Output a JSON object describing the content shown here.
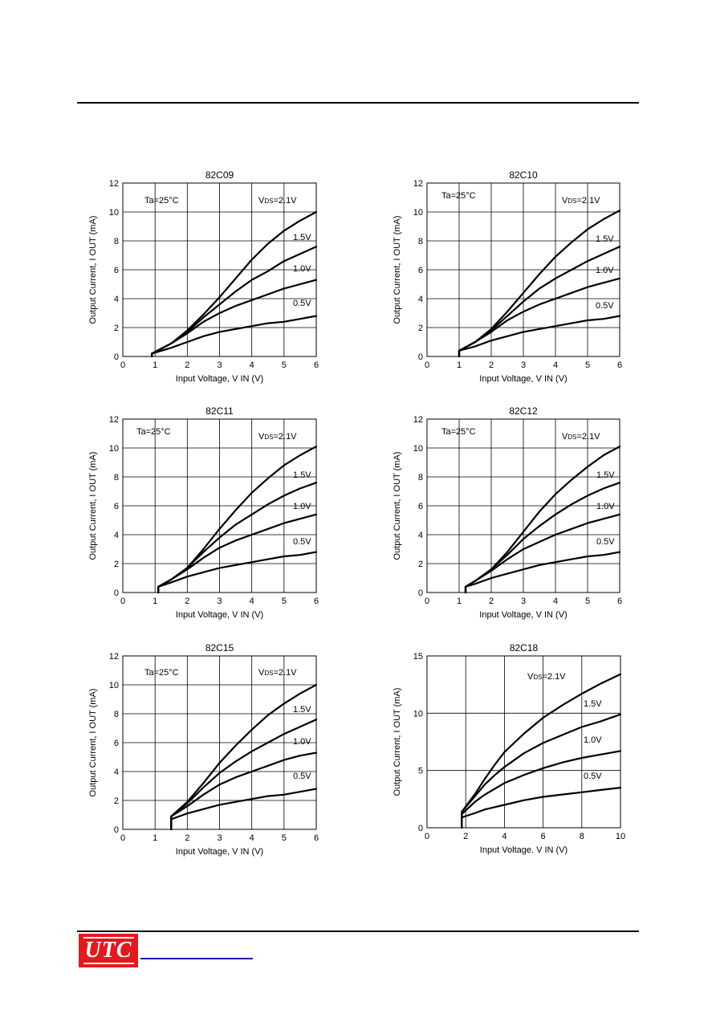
{
  "page": {
    "footer_logo_text": "UTC",
    "colors": {
      "rule": "#000000",
      "logo_bg": "#e3191e",
      "link": "#1a1aa6"
    }
  },
  "chart_data": [
    {
      "type": "line",
      "title": "82C09",
      "xlabel": "Input Voltage, V IN (V)",
      "ylabel": "Output Current, I OUT (mA)",
      "xlim": [
        0,
        6
      ],
      "ylim": [
        0,
        12
      ],
      "xticks": [
        0,
        1,
        2,
        3,
        4,
        5,
        6
      ],
      "yticks": [
        0,
        2,
        4,
        6,
        8,
        10,
        12
      ],
      "annotations": [
        "Ta=25°C"
      ],
      "grid": true,
      "series": [
        {
          "name": "VDS=2.1V",
          "x": [
            0.9,
            1.5,
            2.0,
            2.5,
            3.0,
            3.5,
            4.0,
            4.5,
            5.0,
            5.5,
            6.0
          ],
          "y": [
            0.2,
            0.9,
            1.8,
            2.9,
            4.1,
            5.4,
            6.7,
            7.8,
            8.7,
            9.4,
            10.0
          ]
        },
        {
          "name": "1.5V",
          "x": [
            0.9,
            1.5,
            2.0,
            2.5,
            3.0,
            3.5,
            4.0,
            4.5,
            5.0,
            5.5,
            6.0
          ],
          "y": [
            0.2,
            0.9,
            1.7,
            2.7,
            3.6,
            4.5,
            5.3,
            5.9,
            6.6,
            7.1,
            7.6
          ]
        },
        {
          "name": "1.0V",
          "x": [
            0.9,
            1.5,
            2.0,
            2.5,
            3.0,
            3.5,
            4.0,
            4.5,
            5.0,
            5.5,
            6.0
          ],
          "y": [
            0.2,
            0.9,
            1.6,
            2.4,
            3.0,
            3.5,
            3.9,
            4.3,
            4.7,
            5.0,
            5.3
          ]
        },
        {
          "name": "0.5V",
          "x": [
            0.9,
            1.5,
            2.0,
            2.5,
            3.0,
            3.5,
            4.0,
            4.5,
            5.0,
            5.5,
            6.0
          ],
          "y": [
            0.2,
            0.6,
            1.0,
            1.4,
            1.7,
            1.9,
            2.1,
            2.3,
            2.4,
            2.6,
            2.8
          ]
        }
      ]
    },
    {
      "type": "line",
      "title": "82C10",
      "xlabel": "Input Voltage, V IN (V)",
      "ylabel": "Output Current, I OUT (mA)",
      "xlim": [
        0,
        6
      ],
      "ylim": [
        0,
        12
      ],
      "xticks": [
        0,
        1,
        2,
        3,
        4,
        5,
        6
      ],
      "yticks": [
        0,
        2,
        4,
        6,
        8,
        10,
        12
      ],
      "annotations": [
        "Ta=25°C"
      ],
      "grid": true,
      "series": [
        {
          "name": "VDS=2.1V",
          "x": [
            1.0,
            1.5,
            2.0,
            2.5,
            3.0,
            3.5,
            4.0,
            4.5,
            5.0,
            5.5,
            6.0
          ],
          "y": [
            0.4,
            1.0,
            1.9,
            3.1,
            4.4,
            5.7,
            6.9,
            7.9,
            8.8,
            9.5,
            10.1
          ]
        },
        {
          "name": "1.5V",
          "x": [
            1.0,
            1.5,
            2.0,
            2.5,
            3.0,
            3.5,
            4.0,
            4.5,
            5.0,
            5.5,
            6.0
          ],
          "y": [
            0.4,
            1.0,
            1.8,
            2.8,
            3.8,
            4.7,
            5.4,
            6.0,
            6.6,
            7.1,
            7.6
          ]
        },
        {
          "name": "1.0V",
          "x": [
            1.0,
            1.5,
            2.0,
            2.5,
            3.0,
            3.5,
            4.0,
            4.5,
            5.0,
            5.5,
            6.0
          ],
          "y": [
            0.4,
            1.0,
            1.7,
            2.5,
            3.1,
            3.6,
            4.0,
            4.4,
            4.8,
            5.1,
            5.4
          ]
        },
        {
          "name": "0.5V",
          "x": [
            1.0,
            1.5,
            2.0,
            2.5,
            3.0,
            3.5,
            4.0,
            4.5,
            5.0,
            5.5,
            6.0
          ],
          "y": [
            0.4,
            0.7,
            1.1,
            1.4,
            1.7,
            1.9,
            2.1,
            2.3,
            2.5,
            2.6,
            2.8
          ]
        }
      ]
    },
    {
      "type": "line",
      "title": "82C11",
      "xlabel": "Input Voltage, V IN (V)",
      "ylabel": "Output Current, I OUT (mA)",
      "xlim": [
        0,
        6
      ],
      "ylim": [
        0,
        12
      ],
      "xticks": [
        0,
        1,
        2,
        3,
        4,
        5,
        6
      ],
      "yticks": [
        0,
        2,
        4,
        6,
        8,
        10,
        12
      ],
      "annotations": [
        "Ta=25°C"
      ],
      "grid": true,
      "series": [
        {
          "name": "VDS=2.1V",
          "x": [
            1.1,
            1.5,
            2.0,
            2.5,
            3.0,
            3.5,
            4.0,
            4.5,
            5.0,
            5.5,
            6.0
          ],
          "y": [
            0.4,
            0.9,
            1.7,
            3.0,
            4.4,
            5.7,
            6.9,
            7.9,
            8.8,
            9.5,
            10.1
          ]
        },
        {
          "name": "1.5V",
          "x": [
            1.1,
            1.5,
            2.0,
            2.5,
            3.0,
            3.5,
            4.0,
            4.5,
            5.0,
            5.5,
            6.0
          ],
          "y": [
            0.4,
            0.9,
            1.7,
            2.8,
            3.8,
            4.7,
            5.4,
            6.1,
            6.7,
            7.2,
            7.6
          ]
        },
        {
          "name": "1.0V",
          "x": [
            1.1,
            1.5,
            2.0,
            2.5,
            3.0,
            3.5,
            4.0,
            4.5,
            5.0,
            5.5,
            6.0
          ],
          "y": [
            0.4,
            0.9,
            1.6,
            2.4,
            3.1,
            3.6,
            4.0,
            4.4,
            4.8,
            5.1,
            5.4
          ]
        },
        {
          "name": "0.5V",
          "x": [
            1.1,
            1.5,
            2.0,
            2.5,
            3.0,
            3.5,
            4.0,
            4.5,
            5.0,
            5.5,
            6.0
          ],
          "y": [
            0.4,
            0.7,
            1.1,
            1.4,
            1.7,
            1.9,
            2.1,
            2.3,
            2.5,
            2.6,
            2.8
          ]
        }
      ]
    },
    {
      "type": "line",
      "title": "82C12",
      "xlabel": "Input Voltage, V IN (V)",
      "ylabel": "Output Current, I OUT (mA)",
      "xlim": [
        0,
        6
      ],
      "ylim": [
        0,
        12
      ],
      "xticks": [
        0,
        1,
        2,
        3,
        4,
        5,
        6
      ],
      "yticks": [
        0,
        2,
        4,
        6,
        8,
        10,
        12
      ],
      "annotations": [
        "Ta=25°C"
      ],
      "grid": true,
      "series": [
        {
          "name": "VDS=2.1V",
          "x": [
            1.2,
            1.5,
            2.0,
            2.5,
            3.0,
            3.5,
            4.0,
            4.5,
            5.0,
            5.5,
            6.0
          ],
          "y": [
            0.4,
            0.8,
            1.6,
            2.8,
            4.2,
            5.6,
            6.8,
            7.8,
            8.7,
            9.5,
            10.1
          ]
        },
        {
          "name": "1.5V",
          "x": [
            1.2,
            1.5,
            2.0,
            2.5,
            3.0,
            3.5,
            4.0,
            4.5,
            5.0,
            5.5,
            6.0
          ],
          "y": [
            0.4,
            0.8,
            1.6,
            2.6,
            3.7,
            4.6,
            5.4,
            6.1,
            6.7,
            7.2,
            7.6
          ]
        },
        {
          "name": "1.0V",
          "x": [
            1.2,
            1.5,
            2.0,
            2.5,
            3.0,
            3.5,
            4.0,
            4.5,
            5.0,
            5.5,
            6.0
          ],
          "y": [
            0.4,
            0.8,
            1.5,
            2.3,
            3.0,
            3.5,
            4.0,
            4.4,
            4.8,
            5.1,
            5.4
          ]
        },
        {
          "name": "0.5V",
          "x": [
            1.2,
            1.5,
            2.0,
            2.5,
            3.0,
            3.5,
            4.0,
            4.5,
            5.0,
            5.5,
            6.0
          ],
          "y": [
            0.4,
            0.6,
            1.0,
            1.3,
            1.6,
            1.9,
            2.1,
            2.3,
            2.5,
            2.6,
            2.8
          ]
        }
      ]
    },
    {
      "type": "line",
      "title": "82C15",
      "xlabel": "Input Voltage, V IN (V)",
      "ylabel": "Output Current, I OUT (mA)",
      "xlim": [
        0,
        6
      ],
      "ylim": [
        0,
        12
      ],
      "xticks": [
        0,
        1,
        2,
        3,
        4,
        5,
        6
      ],
      "yticks": [
        0,
        2,
        4,
        6,
        8,
        10,
        12
      ],
      "annotations": [
        "Ta=25°C"
      ],
      "grid": true,
      "series": [
        {
          "name": "VDS=2.1V",
          "x": [
            1.5,
            2.0,
            2.5,
            3.0,
            3.5,
            4.0,
            4.5,
            5.0,
            5.5,
            6.0
          ],
          "y": [
            0.9,
            1.9,
            3.2,
            4.6,
            5.8,
            6.9,
            7.9,
            8.7,
            9.4,
            10.0
          ]
        },
        {
          "name": "1.5V",
          "x": [
            1.5,
            2.0,
            2.5,
            3.0,
            3.5,
            4.0,
            4.5,
            5.0,
            5.5,
            6.0
          ],
          "y": [
            0.9,
            1.8,
            2.9,
            3.9,
            4.7,
            5.4,
            6.0,
            6.6,
            7.1,
            7.6
          ]
        },
        {
          "name": "1.0V",
          "x": [
            1.5,
            2.0,
            2.5,
            3.0,
            3.5,
            4.0,
            4.5,
            5.0,
            5.5,
            6.0
          ],
          "y": [
            0.9,
            1.6,
            2.4,
            3.1,
            3.6,
            4.0,
            4.4,
            4.8,
            5.1,
            5.3
          ]
        },
        {
          "name": "0.5V",
          "x": [
            1.5,
            2.0,
            2.5,
            3.0,
            3.5,
            4.0,
            4.5,
            5.0,
            5.5,
            6.0
          ],
          "y": [
            0.7,
            1.1,
            1.4,
            1.7,
            1.9,
            2.1,
            2.3,
            2.4,
            2.6,
            2.8
          ]
        }
      ]
    },
    {
      "type": "line",
      "title": "82C18",
      "xlabel": "Input Voltage. V IN (V)",
      "ylabel": "Output Current, I OUT (mA)",
      "xlim": [
        0,
        10
      ],
      "ylim": [
        0,
        15
      ],
      "xticks": [
        0,
        2,
        4,
        6,
        8,
        10
      ],
      "yticks": [
        0,
        5,
        10,
        15
      ],
      "annotations": [],
      "grid": true,
      "series": [
        {
          "name": "VDS=2.1V",
          "x": [
            1.8,
            2.5,
            3.0,
            3.5,
            4.0,
            5.0,
            6.0,
            7.0,
            8.0,
            9.0,
            10.0
          ],
          "y": [
            1.4,
            3.0,
            4.3,
            5.5,
            6.6,
            8.2,
            9.6,
            10.7,
            11.7,
            12.6,
            13.4
          ]
        },
        {
          "name": "1.5V",
          "x": [
            1.8,
            2.5,
            3.0,
            3.5,
            4.0,
            5.0,
            6.0,
            7.0,
            8.0,
            9.0,
            10.0
          ],
          "y": [
            1.4,
            2.8,
            3.8,
            4.6,
            5.3,
            6.5,
            7.4,
            8.1,
            8.8,
            9.3,
            9.9
          ]
        },
        {
          "name": "1.0V",
          "x": [
            1.8,
            2.5,
            3.0,
            3.5,
            4.0,
            5.0,
            6.0,
            7.0,
            8.0,
            9.0,
            10.0
          ],
          "y": [
            1.2,
            2.3,
            2.9,
            3.4,
            3.9,
            4.6,
            5.2,
            5.7,
            6.1,
            6.4,
            6.7
          ]
        },
        {
          "name": "0.5V",
          "x": [
            1.8,
            2.5,
            3.0,
            3.5,
            4.0,
            5.0,
            6.0,
            7.0,
            8.0,
            9.0,
            10.0
          ],
          "y": [
            0.9,
            1.3,
            1.6,
            1.8,
            2.0,
            2.4,
            2.7,
            2.9,
            3.1,
            3.3,
            3.5
          ]
        }
      ]
    }
  ]
}
